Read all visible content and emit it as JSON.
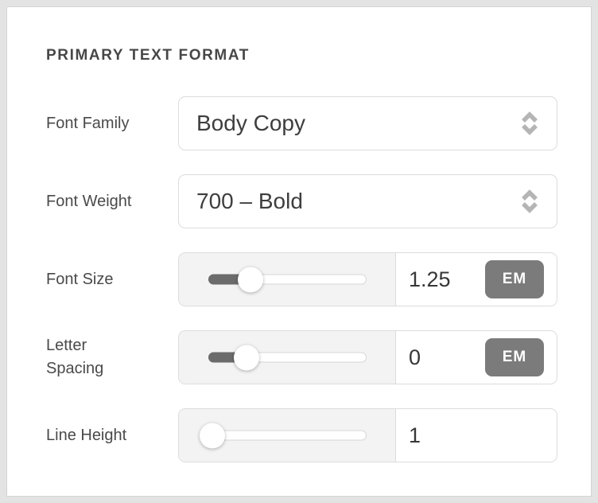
{
  "panel": {
    "title": "PRIMARY TEXT FORMAT"
  },
  "rows": [
    {
      "type": "select",
      "label": "Font Family",
      "value": "Body Copy"
    },
    {
      "type": "select",
      "label": "Font Weight",
      "value": "700 – Bold"
    },
    {
      "type": "slider",
      "label": "Font Size",
      "value": "1.25",
      "unit": "EM",
      "percent": 26.5
    },
    {
      "type": "slider",
      "label": "Letter Spacing",
      "value": "0",
      "unit": "EM",
      "percent": 24
    },
    {
      "type": "slider",
      "label": "Line Height",
      "value": "1",
      "unit": "",
      "percent": 2
    }
  ],
  "colors": {
    "page_bg": "#e3e3e3",
    "panel_bg": "#ffffff",
    "slider_fill": "#6b6b6b",
    "badge_bg": "#7b7b7b"
  }
}
